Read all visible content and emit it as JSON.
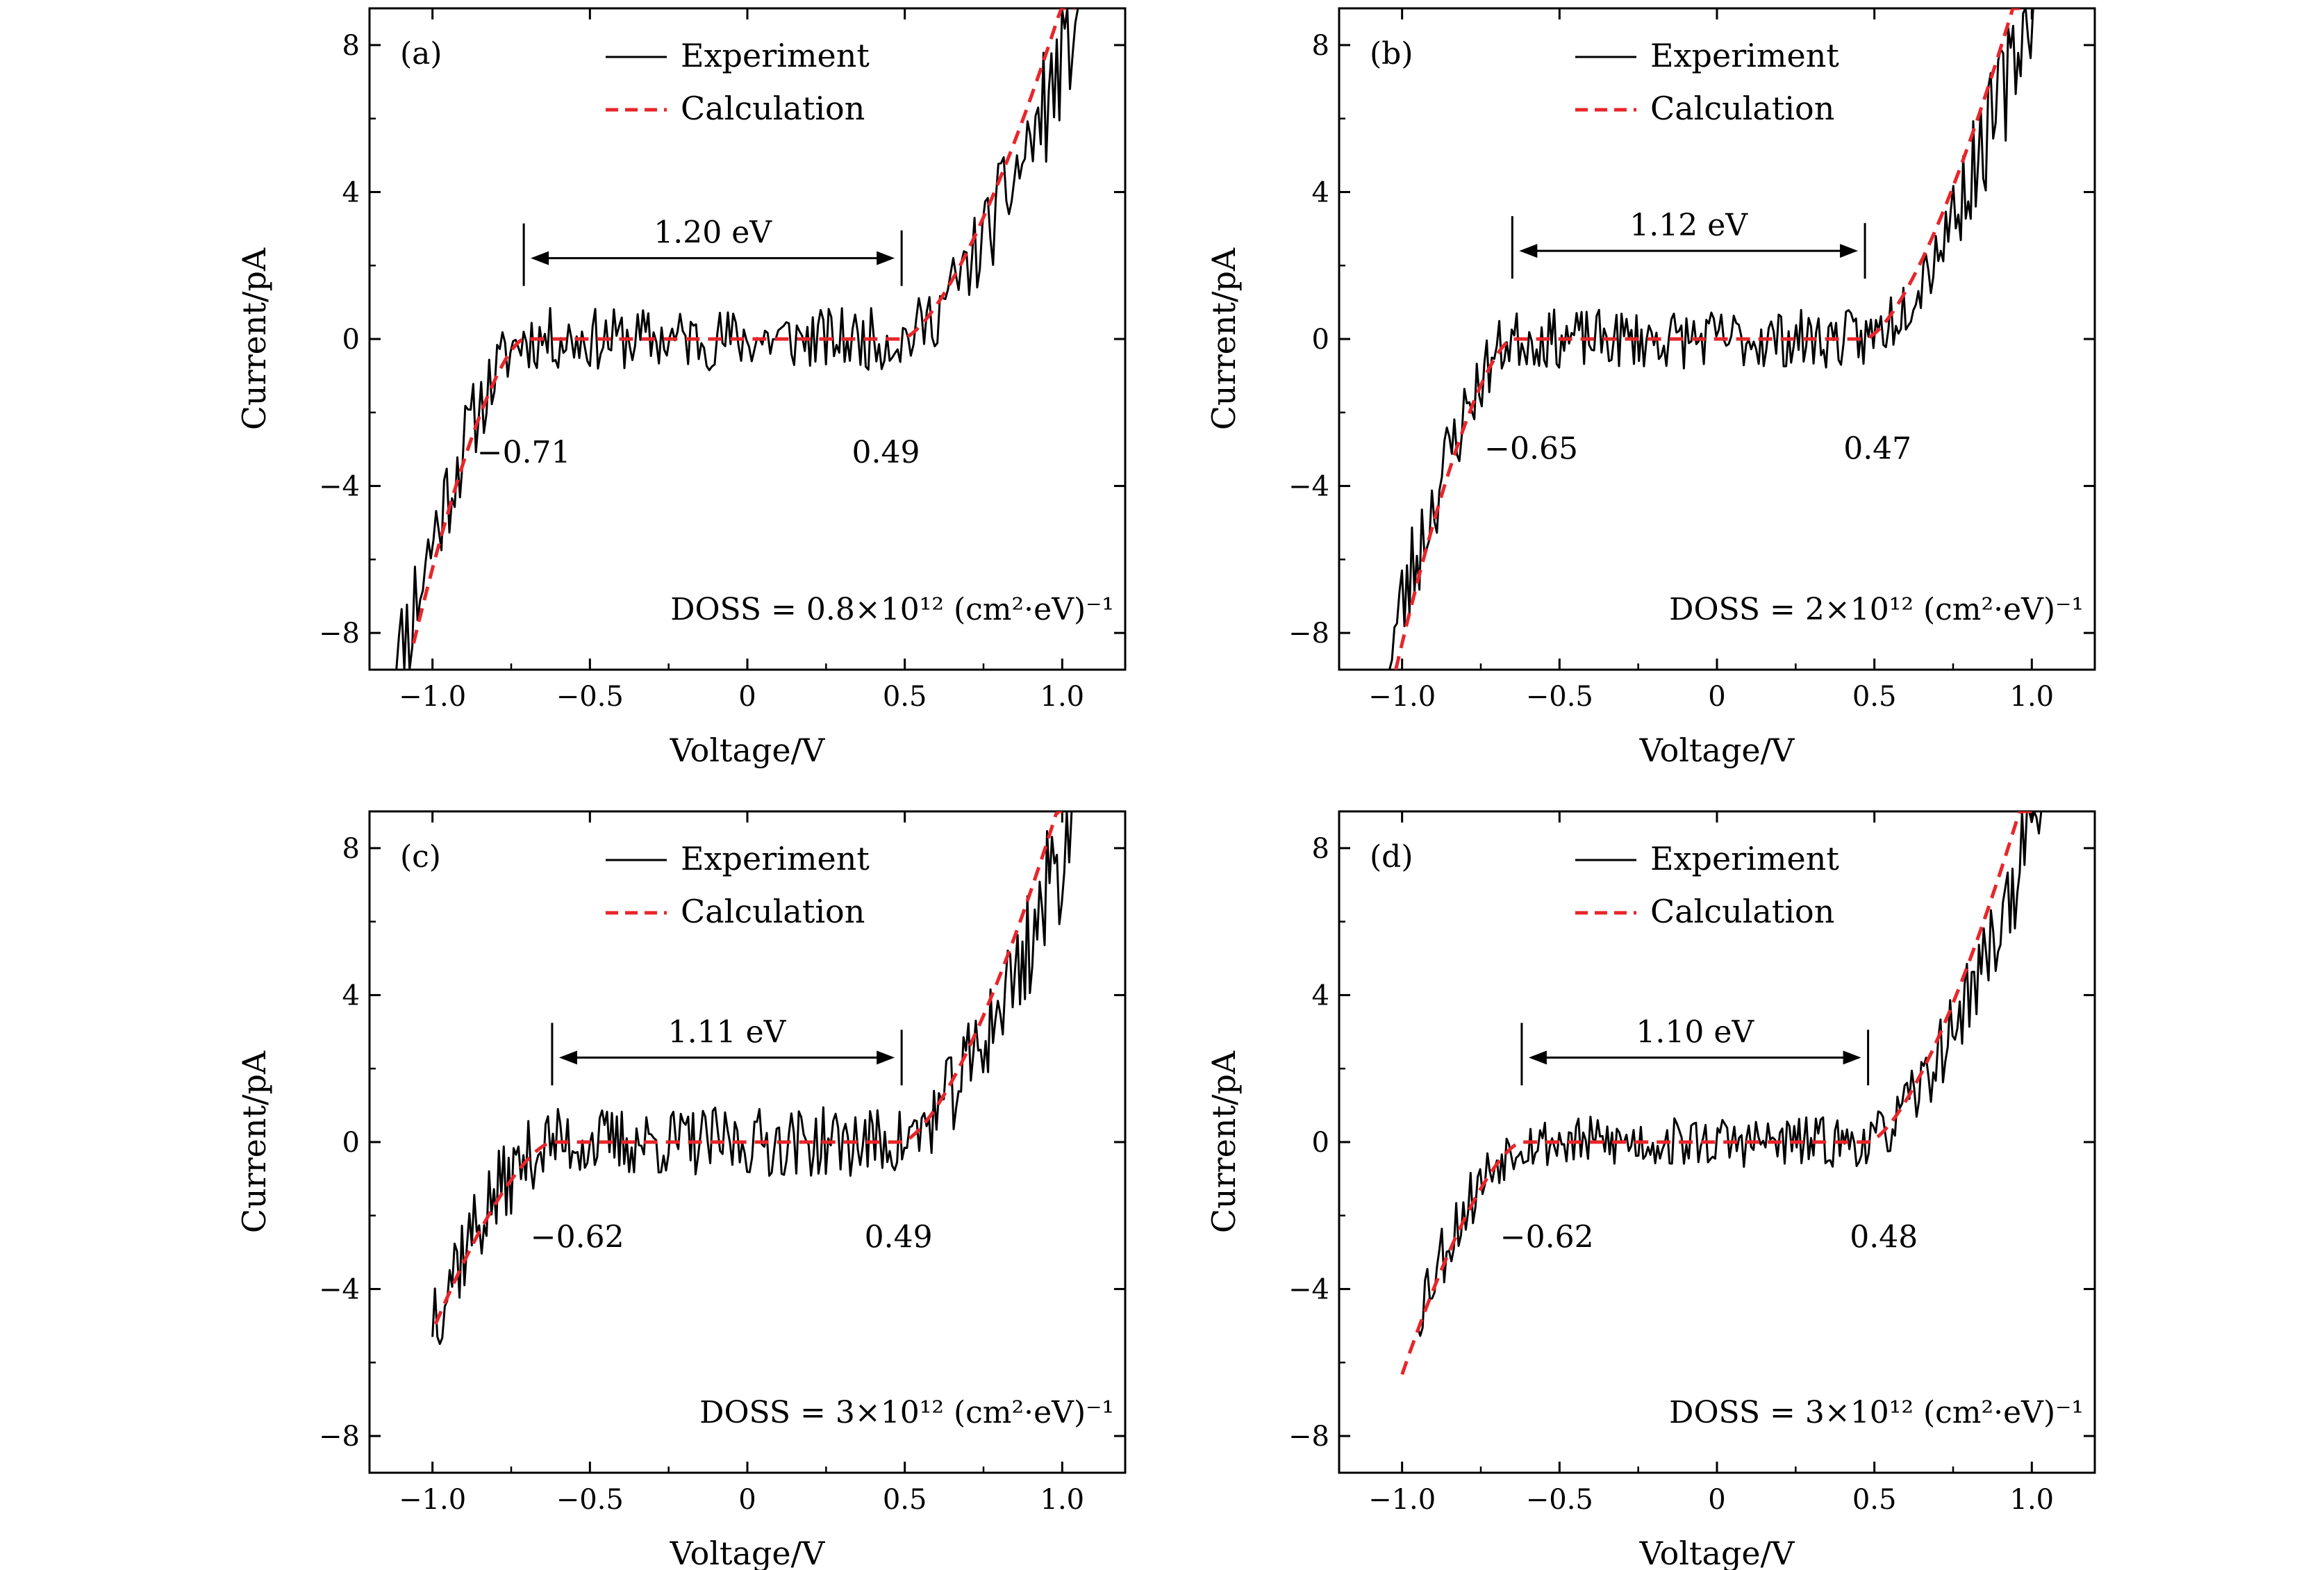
{
  "chart_data": [
    {
      "type": "line",
      "panel_label": "(a)",
      "xlabel": "Voltage/V",
      "ylabel": "Current/pA",
      "xlim": [
        -1.2,
        1.2
      ],
      "ylim": [
        -9,
        9
      ],
      "x_ticks": [
        -1.0,
        -0.5,
        0,
        0.5,
        1.0
      ],
      "x_tick_labels": [
        "−1.0",
        "−0.5",
        "0",
        "0.5",
        "1.0"
      ],
      "y_ticks": [
        -8,
        -4,
        0,
        4,
        8
      ],
      "y_tick_labels": [
        "−8",
        "−4",
        "0",
        "4",
        "8"
      ],
      "legend": {
        "placement": "top-center",
        "entries": [
          "Experiment",
          "Calculation"
        ]
      },
      "series": [
        {
          "name": "Experiment",
          "style": "solid",
          "color": "#000000"
        },
        {
          "name": "Calculation",
          "style": "dashed",
          "color": "#e8262a"
        }
      ],
      "fit": {
        "vmin": -0.71,
        "vmax": 0.49,
        "kneg": 40,
        "kpos": 25,
        "p": 1.5,
        "v_start": -1.06,
        "v_end": 1.04
      },
      "exp": {
        "v_start": -1.14,
        "v_end": 1.05,
        "noise": 0.85,
        "seed": 11
      },
      "gap": {
        "label": "1.20 eV",
        "x1": -0.71,
        "x2": 0.49,
        "y": 2.2,
        "left_marker_x": -0.71,
        "right_marker_x": 0.49
      },
      "annotations": [
        {
          "text": "−0.71",
          "x": -0.71,
          "y": -3.1
        },
        {
          "text": "0.49",
          "x": 0.44,
          "y": -3.1
        }
      ],
      "doss_label": "DOSS = 0.8×10¹² (cm²·eV)⁻¹"
    },
    {
      "type": "line",
      "panel_label": "(b)",
      "xlabel": "Voltage/V",
      "ylabel": "Current/pA",
      "xlim": [
        -1.2,
        1.2
      ],
      "ylim": [
        -9,
        9
      ],
      "x_ticks": [
        -1.0,
        -0.5,
        0,
        0.5,
        1.0
      ],
      "x_tick_labels": [
        "−1.0",
        "−0.5",
        "0",
        "0.5",
        "1.0"
      ],
      "y_ticks": [
        -8,
        -4,
        0,
        4,
        8
      ],
      "y_tick_labels": [
        "−8",
        "−4",
        "0",
        "4",
        "8"
      ],
      "legend": {
        "placement": "top-center",
        "entries": [
          "Experiment",
          "Calculation"
        ]
      },
      "series": [
        {
          "name": "Experiment",
          "style": "solid",
          "color": "#000000"
        },
        {
          "name": "Calculation",
          "style": "dashed",
          "color": "#e8262a"
        }
      ],
      "fit": {
        "vmin": -0.65,
        "vmax": 0.47,
        "kneg": 40,
        "kpos": 28,
        "p": 1.5,
        "v_start": -1.02,
        "v_end": 0.98
      },
      "exp": {
        "v_start": -1.04,
        "v_end": 1.02,
        "noise": 0.8,
        "seed": 23
      },
      "gap": {
        "label": "1.12 eV",
        "x1": -0.65,
        "x2": 0.47,
        "y": 2.4,
        "left_marker_x": -0.65,
        "right_marker_x": 0.47
      },
      "annotations": [
        {
          "text": "−0.65",
          "x": -0.59,
          "y": -3.0
        },
        {
          "text": "0.47",
          "x": 0.51,
          "y": -3.0
        }
      ],
      "doss_label": "DOSS = 2×10¹² (cm²·eV)⁻¹"
    },
    {
      "type": "line",
      "panel_label": "(c)",
      "xlabel": "Voltage/V",
      "ylabel": "Current/pA",
      "xlim": [
        -1.2,
        1.2
      ],
      "ylim": [
        -9,
        9
      ],
      "x_ticks": [
        -1.0,
        -0.5,
        0,
        0.5,
        1.0
      ],
      "x_tick_labels": [
        "−1.0",
        "−0.5",
        "0",
        "0.5",
        "1.0"
      ],
      "y_ticks": [
        -8,
        -4,
        0,
        4,
        8
      ],
      "y_tick_labels": [
        "−8",
        "−4",
        "0",
        "4",
        "8"
      ],
      "legend": {
        "placement": "top-center",
        "entries": [
          "Experiment",
          "Calculation"
        ]
      },
      "series": [
        {
          "name": "Experiment",
          "style": "solid",
          "color": "#000000"
        },
        {
          "name": "Calculation",
          "style": "dashed",
          "color": "#e8262a"
        }
      ],
      "fit": {
        "vmin": -0.62,
        "vmax": 0.49,
        "kneg": 22,
        "kpos": 26,
        "p": 1.5,
        "v_start": -0.99,
        "v_end": 1.0
      },
      "exp": {
        "v_start": -1.0,
        "v_end": 1.03,
        "noise": 0.95,
        "seed": 37
      },
      "gap": {
        "label": "1.11 eV",
        "x1": -0.62,
        "x2": 0.49,
        "y": 2.3,
        "left_marker_x": -0.62,
        "right_marker_x": 0.49
      },
      "annotations": [
        {
          "text": "−0.62",
          "x": -0.54,
          "y": -2.6
        },
        {
          "text": "0.49",
          "x": 0.48,
          "y": -2.6
        }
      ],
      "doss_label": "DOSS = 3×10¹² (cm²·eV)⁻¹"
    },
    {
      "type": "line",
      "panel_label": "(d)",
      "xlabel": "Voltage/V",
      "ylabel": "Current/pA",
      "xlim": [
        -1.2,
        1.2
      ],
      "ylim": [
        -9,
        9
      ],
      "x_ticks": [
        -1.0,
        -0.5,
        0,
        0.5,
        1.0
      ],
      "x_tick_labels": [
        "−1.0",
        "−0.5",
        "0",
        "0.5",
        "1.0"
      ],
      "y_ticks": [
        -8,
        -4,
        0,
        4,
        8
      ],
      "y_tick_labels": [
        "−8",
        "−4",
        "0",
        "4",
        "8"
      ],
      "legend": {
        "placement": "top-center",
        "entries": [
          "Experiment",
          "Calculation"
        ]
      },
      "series": [
        {
          "name": "Experiment",
          "style": "solid",
          "color": "#000000"
        },
        {
          "name": "Calculation",
          "style": "dashed",
          "color": "#e8262a"
        }
      ],
      "fit": {
        "vmin": -0.62,
        "vmax": 0.48,
        "kneg": 27,
        "kpos": 27,
        "p": 1.5,
        "v_start": -1.0,
        "v_end": 1.0
      },
      "exp": {
        "v_start": -0.95,
        "v_end": 1.03,
        "noise": 0.7,
        "seed": 53
      },
      "gap": {
        "label": "1.10 eV",
        "x1": -0.62,
        "x2": 0.48,
        "y": 2.3,
        "left_marker_x": -0.62,
        "right_marker_x": 0.48
      },
      "annotations": [
        {
          "text": "−0.62",
          "x": -0.54,
          "y": -2.6
        },
        {
          "text": "0.48",
          "x": 0.53,
          "y": -2.6
        }
      ],
      "doss_label": "DOSS = 3×10¹² (cm²·eV)⁻¹"
    }
  ]
}
